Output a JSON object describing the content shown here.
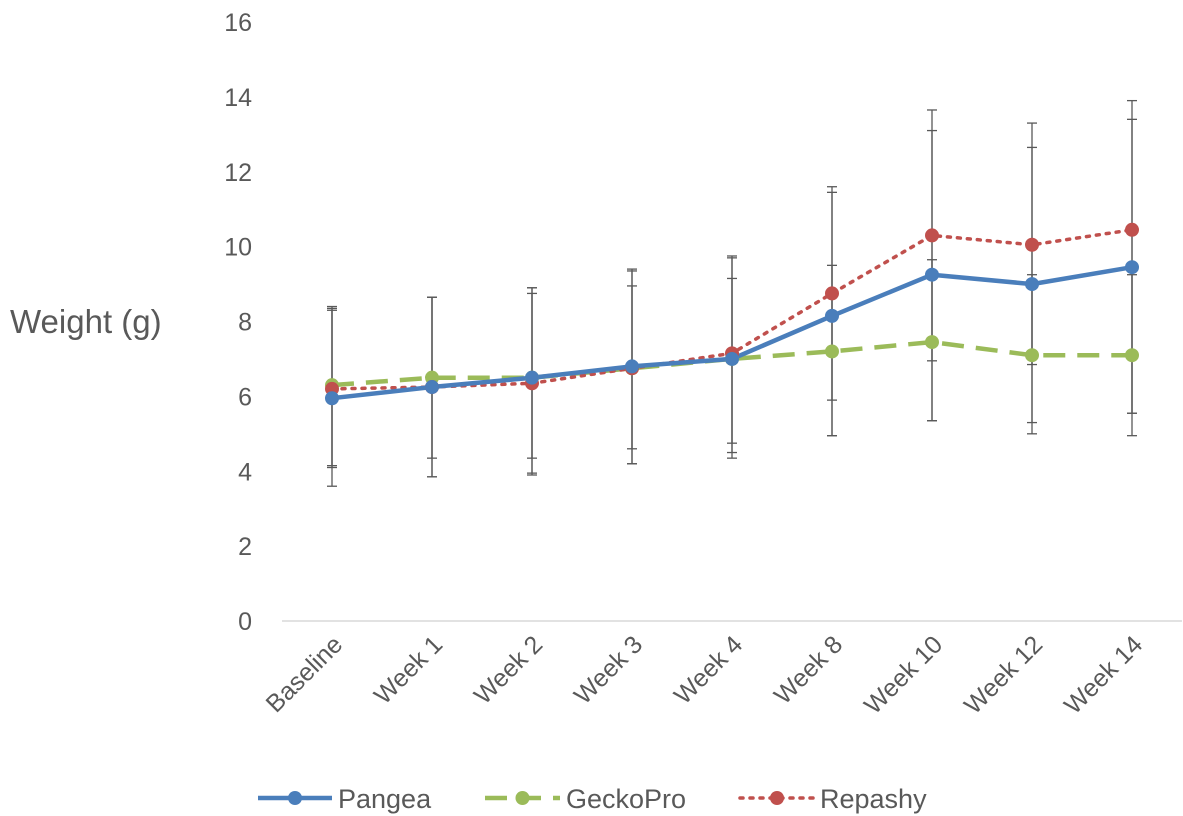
{
  "chart_data": {
    "type": "line",
    "title": "",
    "xlabel": "",
    "ylabel": "Weight (g)",
    "ylim": [
      0,
      16
    ],
    "yticks": [
      "0",
      "2",
      "4",
      "6",
      "8",
      "10",
      "12",
      "14",
      "16"
    ],
    "grid": false,
    "legend_position": "bottom",
    "categories": [
      "Baseline",
      "Week 1",
      "Week 2",
      "Week 3",
      "Week 4",
      "Week 8",
      "Week 10",
      "Week 12",
      "Week 14"
    ],
    "series": [
      {
        "name": "Pangea",
        "color": "#4a7ebb",
        "style": "solid",
        "values": [
          5.95,
          6.25,
          6.5,
          6.8,
          7.0,
          8.15,
          9.25,
          9.0,
          9.45
        ],
        "error_low": [
          4.1,
          3.85,
          3.95,
          4.6,
          4.75,
          5.9,
          5.35,
          5.3,
          5.55
        ],
        "error_high": [
          8.35,
          8.65,
          8.9,
          9.35,
          9.7,
          11.45,
          13.1,
          12.65,
          13.4
        ]
      },
      {
        "name": "GeckoPro",
        "color": "#9bbb59",
        "style": "dashed",
        "values": [
          6.3,
          6.5,
          6.5,
          6.75,
          7.0,
          7.2,
          7.45,
          7.1,
          7.1
        ],
        "error_low": [
          3.6,
          4.35,
          4.35,
          4.2,
          4.35,
          4.95,
          6.95,
          6.85,
          4.95
        ],
        "error_high": [
          8.3,
          8.65,
          8.75,
          8.95,
          9.15,
          9.5,
          9.65,
          9.25,
          9.25
        ]
      },
      {
        "name": "Repashy",
        "color": "#c0504d",
        "style": "dotted",
        "values": [
          6.2,
          6.25,
          6.35,
          6.75,
          7.15,
          8.75,
          10.3,
          10.05,
          10.45
        ],
        "error_low": [
          4.15,
          3.85,
          3.9,
          4.2,
          4.5,
          4.95,
          5.35,
          5.0,
          5.55
        ],
        "error_high": [
          8.4,
          8.65,
          8.9,
          9.4,
          9.75,
          11.6,
          13.65,
          13.3,
          13.9
        ]
      }
    ]
  }
}
